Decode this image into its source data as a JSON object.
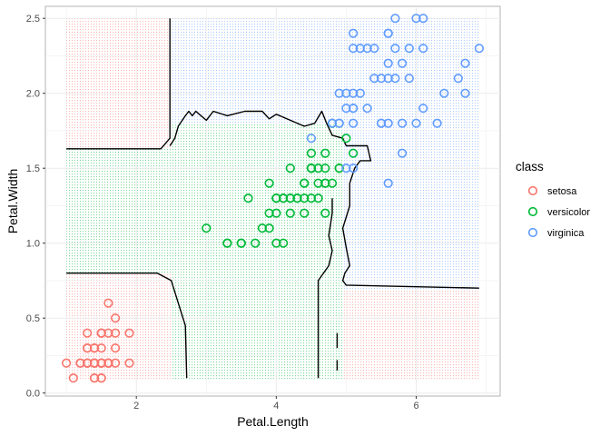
{
  "chart_data": {
    "type": "scatter",
    "title": "",
    "xlabel": "Petal.Length",
    "ylabel": "Petal.Width",
    "xlim": [
      0.7,
      7.2
    ],
    "ylim": [
      -0.02,
      2.58
    ],
    "x_ticks": [
      2,
      4,
      6
    ],
    "y_ticks": [
      0.0,
      0.5,
      1.0,
      1.5,
      2.0,
      2.5
    ],
    "x_tick_labels": [
      "2",
      "4",
      "6"
    ],
    "y_tick_labels": [
      "0.0",
      "0.5",
      "1.0",
      "1.5",
      "2.0",
      "2.5"
    ],
    "grid": true,
    "legend": {
      "title": "class",
      "position": "right",
      "entries": [
        "setosa",
        "versicolor",
        "virginica"
      ]
    },
    "colors": {
      "setosa": "#F8766D",
      "versicolor": "#00BA38",
      "virginica": "#619CFF"
    },
    "marker": "open-circle",
    "region_grid": {
      "x_range": [
        1.0,
        6.9
      ],
      "y_range": [
        0.1,
        2.5
      ],
      "regions": [
        {
          "class": "setosa",
          "x": [
            1.0,
            2.48
          ],
          "y": [
            0.1,
            0.8
          ]
        },
        {
          "class": "setosa",
          "x": [
            1.0,
            2.48
          ],
          "y": [
            1.63,
            2.5
          ]
        },
        {
          "class": "setosa",
          "x": [
            4.95,
            6.9
          ],
          "y": [
            0.1,
            0.7
          ]
        },
        {
          "class": "virginica",
          "x": [
            2.48,
            6.9
          ],
          "y": [
            1.8,
            2.5
          ]
        },
        {
          "class": "virginica",
          "x": [
            4.95,
            6.9
          ],
          "y": [
            0.7,
            1.8
          ]
        },
        {
          "class": "versicolor",
          "x": [
            1.0,
            6.9
          ],
          "y": [
            0.1,
            2.5
          ]
        }
      ]
    },
    "boundaries": [
      [
        [
          1.0,
          1.63
        ],
        [
          2.35,
          1.63
        ],
        [
          2.48,
          1.7
        ],
        [
          2.48,
          2.5
        ]
      ],
      [
        [
          1.0,
          0.8
        ],
        [
          2.3,
          0.8
        ],
        [
          2.5,
          0.75
        ],
        [
          2.6,
          0.6
        ],
        [
          2.7,
          0.45
        ],
        [
          2.72,
          0.1
        ]
      ],
      [
        [
          2.48,
          1.65
        ],
        [
          2.55,
          1.7
        ],
        [
          2.6,
          1.78
        ],
        [
          2.7,
          1.85
        ],
        [
          2.75,
          1.88
        ],
        [
          2.8,
          1.85
        ],
        [
          2.85,
          1.88
        ],
        [
          3.0,
          1.82
        ],
        [
          3.1,
          1.88
        ],
        [
          3.3,
          1.85
        ],
        [
          3.55,
          1.88
        ],
        [
          3.8,
          1.88
        ],
        [
          3.9,
          1.83
        ],
        [
          4.0,
          1.86
        ],
        [
          4.2,
          1.82
        ],
        [
          4.4,
          1.78
        ],
        [
          4.55,
          1.8
        ],
        [
          4.65,
          1.88
        ],
        [
          4.72,
          1.8
        ],
        [
          4.8,
          1.72
        ],
        [
          4.95,
          1.7
        ],
        [
          5.0,
          1.65
        ],
        [
          5.3,
          1.65
        ],
        [
          5.35,
          1.55
        ],
        [
          5.2,
          1.55
        ],
        [
          5.12,
          1.5
        ],
        [
          5.05,
          1.4
        ],
        [
          5.05,
          1.25
        ],
        [
          4.95,
          1.1
        ],
        [
          5.0,
          0.97
        ],
        [
          5.05,
          0.85
        ],
        [
          4.98,
          0.8
        ],
        [
          4.95,
          0.75
        ],
        [
          5.0,
          0.72
        ],
        [
          6.9,
          0.7
        ]
      ],
      [
        [
          4.6,
          0.1
        ],
        [
          4.6,
          0.75
        ],
        [
          4.75,
          0.85
        ],
        [
          4.8,
          0.95
        ],
        [
          4.75,
          1.05
        ],
        [
          4.8,
          1.2
        ],
        [
          4.8,
          1.3
        ]
      ],
      [
        [
          4.87,
          0.4
        ],
        [
          4.87,
          0.3
        ]
      ],
      [
        [
          4.87,
          0.22
        ],
        [
          4.87,
          0.15
        ]
      ]
    ],
    "series": [
      {
        "name": "setosa",
        "points": [
          [
            1.4,
            0.2
          ],
          [
            1.4,
            0.2
          ],
          [
            1.3,
            0.2
          ],
          [
            1.5,
            0.2
          ],
          [
            1.4,
            0.2
          ],
          [
            1.7,
            0.4
          ],
          [
            1.4,
            0.3
          ],
          [
            1.5,
            0.2
          ],
          [
            1.4,
            0.2
          ],
          [
            1.5,
            0.1
          ],
          [
            1.5,
            0.2
          ],
          [
            1.6,
            0.2
          ],
          [
            1.4,
            0.1
          ],
          [
            1.1,
            0.1
          ],
          [
            1.2,
            0.2
          ],
          [
            1.5,
            0.4
          ],
          [
            1.3,
            0.4
          ],
          [
            1.4,
            0.3
          ],
          [
            1.7,
            0.3
          ],
          [
            1.5,
            0.3
          ],
          [
            1.7,
            0.2
          ],
          [
            1.5,
            0.4
          ],
          [
            1.0,
            0.2
          ],
          [
            1.7,
            0.5
          ],
          [
            1.9,
            0.2
          ],
          [
            1.6,
            0.2
          ],
          [
            1.6,
            0.4
          ],
          [
            1.5,
            0.2
          ],
          [
            1.4,
            0.2
          ],
          [
            1.6,
            0.2
          ],
          [
            1.6,
            0.2
          ],
          [
            1.5,
            0.4
          ],
          [
            1.5,
            0.1
          ],
          [
            1.4,
            0.2
          ],
          [
            1.5,
            0.2
          ],
          [
            1.2,
            0.2
          ],
          [
            1.3,
            0.2
          ],
          [
            1.4,
            0.1
          ],
          [
            1.3,
            0.2
          ],
          [
            1.5,
            0.2
          ],
          [
            1.3,
            0.3
          ],
          [
            1.3,
            0.3
          ],
          [
            1.3,
            0.2
          ],
          [
            1.6,
            0.6
          ],
          [
            1.9,
            0.4
          ],
          [
            1.4,
            0.3
          ],
          [
            1.6,
            0.2
          ],
          [
            1.4,
            0.2
          ],
          [
            1.5,
            0.2
          ],
          [
            1.4,
            0.2
          ]
        ]
      },
      {
        "name": "versicolor",
        "points": [
          [
            4.7,
            1.4
          ],
          [
            4.5,
            1.5
          ],
          [
            4.9,
            1.5
          ],
          [
            4.0,
            1.3
          ],
          [
            4.6,
            1.5
          ],
          [
            4.5,
            1.3
          ],
          [
            4.7,
            1.6
          ],
          [
            3.3,
            1.0
          ],
          [
            4.6,
            1.3
          ],
          [
            3.9,
            1.4
          ],
          [
            3.5,
            1.0
          ],
          [
            4.2,
            1.5
          ],
          [
            4.0,
            1.0
          ],
          [
            4.7,
            1.4
          ],
          [
            3.6,
            1.3
          ],
          [
            4.4,
            1.4
          ],
          [
            4.5,
            1.5
          ],
          [
            4.1,
            1.0
          ],
          [
            4.5,
            1.5
          ],
          [
            3.9,
            1.1
          ],
          [
            4.8,
            1.8
          ],
          [
            4.0,
            1.3
          ],
          [
            4.9,
            1.5
          ],
          [
            4.7,
            1.2
          ],
          [
            4.3,
            1.3
          ],
          [
            4.4,
            1.4
          ],
          [
            4.8,
            1.4
          ],
          [
            5.0,
            1.7
          ],
          [
            4.5,
            1.5
          ],
          [
            3.5,
            1.0
          ],
          [
            3.8,
            1.1
          ],
          [
            3.7,
            1.0
          ],
          [
            3.9,
            1.2
          ],
          [
            5.1,
            1.6
          ],
          [
            4.5,
            1.5
          ],
          [
            4.5,
            1.6
          ],
          [
            4.7,
            1.5
          ],
          [
            4.4,
            1.3
          ],
          [
            4.1,
            1.3
          ],
          [
            4.0,
            1.3
          ],
          [
            4.4,
            1.2
          ],
          [
            4.6,
            1.4
          ],
          [
            4.0,
            1.2
          ],
          [
            3.3,
            1.0
          ],
          [
            4.2,
            1.3
          ],
          [
            4.2,
            1.2
          ],
          [
            4.2,
            1.3
          ],
          [
            4.3,
            1.3
          ],
          [
            3.0,
            1.1
          ],
          [
            4.1,
            1.3
          ]
        ]
      },
      {
        "name": "virginica",
        "points": [
          [
            6.0,
            2.5
          ],
          [
            5.1,
            1.9
          ],
          [
            5.9,
            2.1
          ],
          [
            5.6,
            1.8
          ],
          [
            5.8,
            2.2
          ],
          [
            6.6,
            2.1
          ],
          [
            4.5,
            1.7
          ],
          [
            6.3,
            1.8
          ],
          [
            5.8,
            1.8
          ],
          [
            6.1,
            2.5
          ],
          [
            5.1,
            2.0
          ],
          [
            5.3,
            1.9
          ],
          [
            5.5,
            2.1
          ],
          [
            5.0,
            2.0
          ],
          [
            5.1,
            2.4
          ],
          [
            5.3,
            2.3
          ],
          [
            5.5,
            1.8
          ],
          [
            6.7,
            2.2
          ],
          [
            6.9,
            2.3
          ],
          [
            5.0,
            1.5
          ],
          [
            5.7,
            2.3
          ],
          [
            4.9,
            2.0
          ],
          [
            6.7,
            2.0
          ],
          [
            4.9,
            1.8
          ],
          [
            5.7,
            2.1
          ],
          [
            6.0,
            1.8
          ],
          [
            4.8,
            1.8
          ],
          [
            4.9,
            1.8
          ],
          [
            5.6,
            2.1
          ],
          [
            5.8,
            1.6
          ],
          [
            6.1,
            1.9
          ],
          [
            6.4,
            2.0
          ],
          [
            5.6,
            2.2
          ],
          [
            5.1,
            1.5
          ],
          [
            5.6,
            1.4
          ],
          [
            6.1,
            2.3
          ],
          [
            5.6,
            2.4
          ],
          [
            5.5,
            1.8
          ],
          [
            4.8,
            1.8
          ],
          [
            5.4,
            2.1
          ],
          [
            5.6,
            2.4
          ],
          [
            5.1,
            2.3
          ],
          [
            5.1,
            1.9
          ],
          [
            5.9,
            2.3
          ],
          [
            5.7,
            2.5
          ],
          [
            5.2,
            2.3
          ],
          [
            5.0,
            1.9
          ],
          [
            5.2,
            2.0
          ],
          [
            5.4,
            2.3
          ],
          [
            5.1,
            1.8
          ]
        ]
      }
    ]
  }
}
